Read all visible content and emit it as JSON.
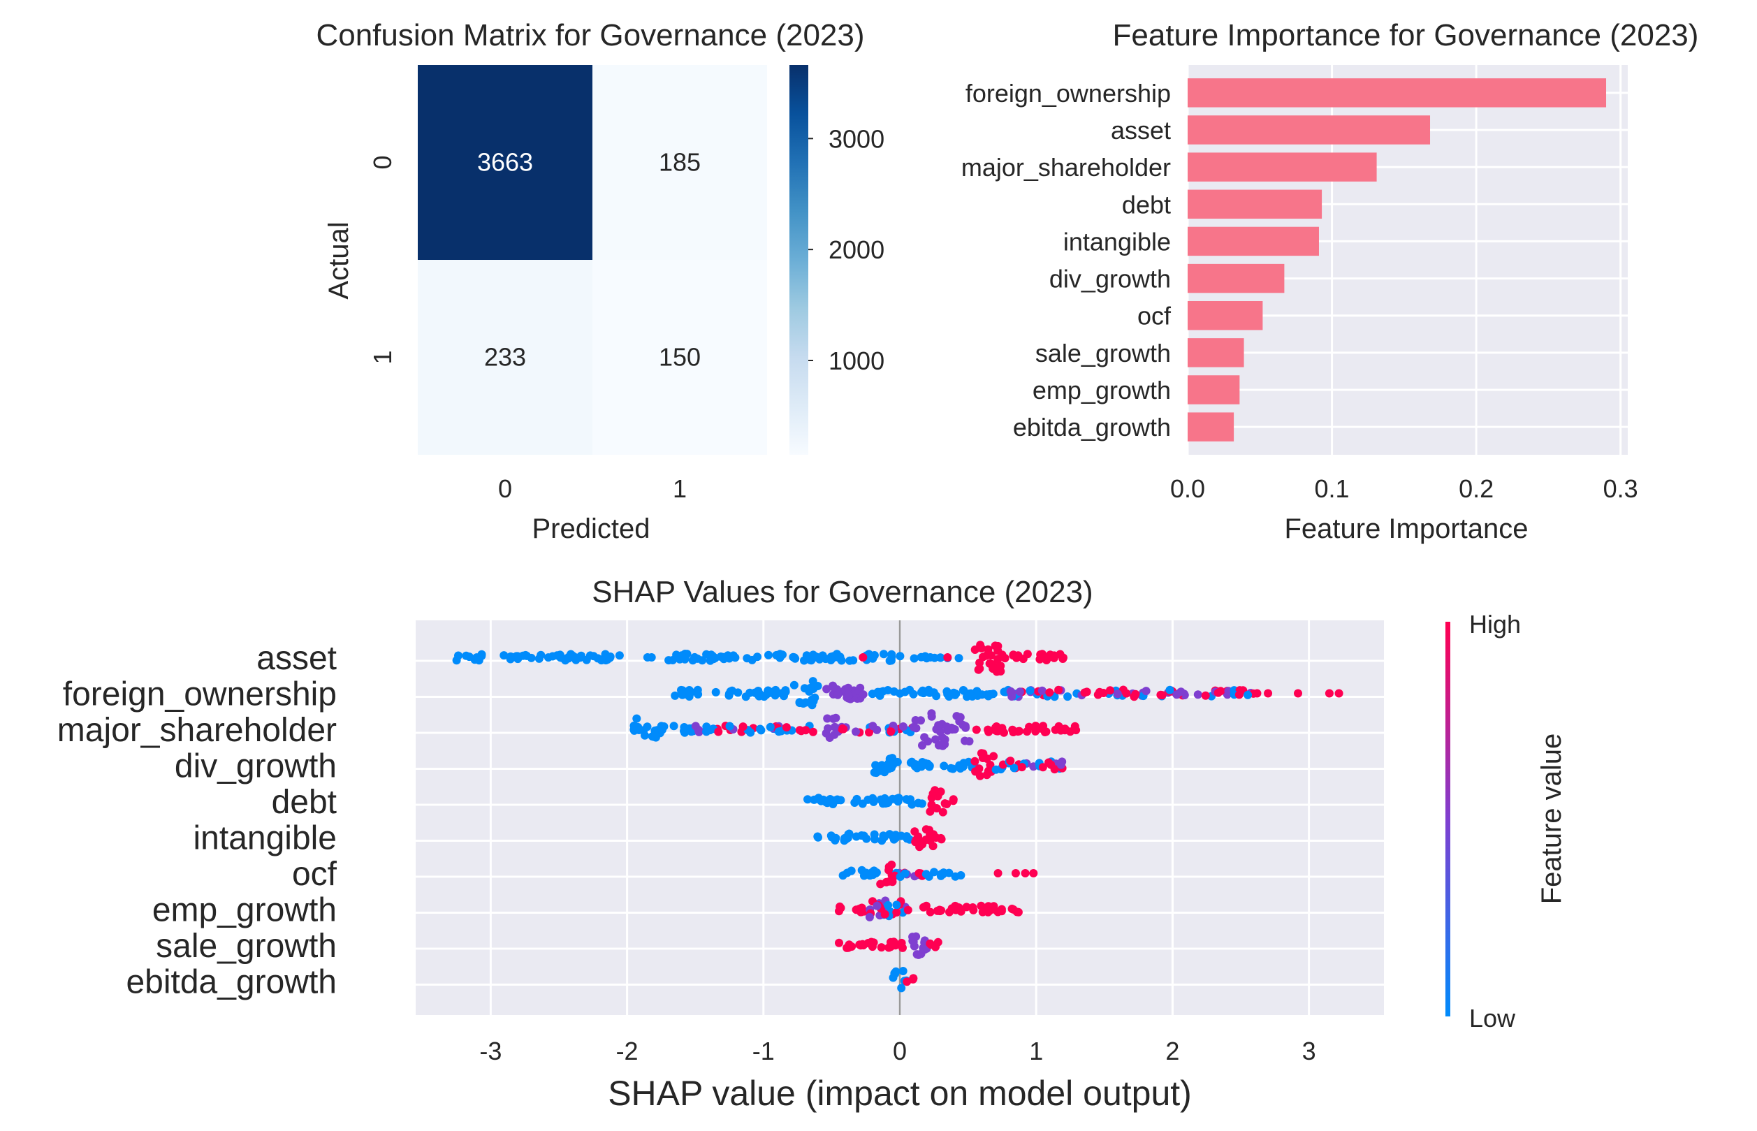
{
  "confusion_title": "Confusion Matrix for Governance (2023)",
  "importance_title": "Feature Importance for Governance (2023)",
  "shap_title": "SHAP Values for Governance (2023)",
  "colorbar_ticks": [
    "1000",
    "2000",
    "3000"
  ],
  "shap_colorbar": {
    "high": "High",
    "low": "Low",
    "label": "Feature value"
  },
  "colors": {
    "heat_low": "#f7fbff",
    "heat_high": "#08306b",
    "bar": "#f7758a",
    "panel_bg": "#eaeaf2",
    "grid": "#ffffff",
    "shap_low": "#008bfb",
    "shap_mid": "#7f3fd0",
    "shap_high": "#ff0052"
  },
  "chart_data": [
    {
      "type": "heatmap",
      "title": "Confusion Matrix for Governance (2023)",
      "xlabel": "Predicted",
      "ylabel": "Actual",
      "x_categories": [
        "0",
        "1"
      ],
      "y_categories": [
        "0",
        "1"
      ],
      "values": [
        [
          3663,
          185
        ],
        [
          233,
          150
        ]
      ],
      "colorbar": {
        "min": 150,
        "max": 3663,
        "ticks": [
          1000,
          2000,
          3000
        ]
      }
    },
    {
      "type": "bar",
      "orientation": "horizontal",
      "title": "Feature Importance for Governance (2023)",
      "xlabel": "Feature Importance",
      "ylabel": "",
      "categories": [
        "foreign_ownership",
        "asset",
        "major_shareholder",
        "debt",
        "intangible",
        "div_growth",
        "ocf",
        "sale_growth",
        "emp_growth",
        "ebitda_growth"
      ],
      "values": [
        0.29,
        0.168,
        0.131,
        0.093,
        0.091,
        0.067,
        0.052,
        0.039,
        0.036,
        0.032
      ],
      "xlim": [
        0,
        0.305
      ],
      "xticks": [
        "0.0",
        "0.1",
        "0.2",
        "0.3"
      ],
      "grid": true
    },
    {
      "type": "scatter",
      "subtype": "shap_beeswarm",
      "title": "SHAP Values for Governance (2023)",
      "xlabel": "SHAP value (impact on model output)",
      "ylabel": "",
      "xlim": [
        -3.55,
        3.55
      ],
      "xticks": [
        "-3",
        "-2",
        "-1",
        "0",
        "1",
        "2",
        "3"
      ],
      "colorbar": {
        "high": "High",
        "low": "Low",
        "label": "Feature value"
      },
      "features": [
        {
          "name": "asset",
          "segments": [
            {
              "from": -3.25,
              "to": -2.05,
              "color": "low",
              "density": 1.0
            },
            {
              "from": -1.7,
              "to": -0.05,
              "color": "low",
              "density": 1.0
            },
            {
              "from": 0.0,
              "to": 0.45,
              "color": "low",
              "density": 0.6
            },
            {
              "from": 0.5,
              "to": 0.75,
              "color": "high",
              "density": 3.0
            },
            {
              "from": 0.75,
              "to": 1.22,
              "color": "high",
              "density": 1.0
            }
          ],
          "points": [
            {
              "x": -1.85,
              "c": "low"
            },
            {
              "x": -1.82,
              "c": "low"
            },
            {
              "x": -0.27,
              "c": "high"
            },
            {
              "x": 0.35,
              "c": "high"
            }
          ]
        },
        {
          "name": "foreign_ownership",
          "segments": [
            {
              "from": -1.65,
              "to": -0.8,
              "color": "low",
              "density": 1.0
            },
            {
              "from": -0.78,
              "to": -0.6,
              "color": "low",
              "density": 2.6
            },
            {
              "from": -0.55,
              "to": -0.25,
              "color": "mid",
              "density": 1.8
            },
            {
              "from": -0.25,
              "to": 0.8,
              "color": "low",
              "density": 1.0
            },
            {
              "from": 0.8,
              "to": 2.6,
              "color": "mixed",
              "density": 1.0
            }
          ],
          "points": [
            {
              "x": 2.62,
              "c": "high"
            },
            {
              "x": 2.7,
              "c": "high"
            },
            {
              "x": 2.92,
              "c": "high"
            },
            {
              "x": 3.15,
              "c": "high"
            },
            {
              "x": 3.22,
              "c": "high"
            }
          ]
        },
        {
          "name": "major_shareholder",
          "segments": [
            {
              "from": -1.95,
              "to": -1.75,
              "color": "low",
              "density": 2.4
            },
            {
              "from": -1.75,
              "to": -1.5,
              "color": "low",
              "density": 1.0
            },
            {
              "from": -1.5,
              "to": -1.45,
              "color": "mid",
              "density": 2.4
            },
            {
              "from": -1.45,
              "to": -0.6,
              "color": "mixed",
              "density": 1.0
            },
            {
              "from": -0.55,
              "to": -0.45,
              "color": "mid",
              "density": 2.4
            },
            {
              "from": -0.45,
              "to": 0.1,
              "color": "mixed",
              "density": 1.0
            },
            {
              "from": 0.1,
              "to": 0.52,
              "color": "mid",
              "density": 3.4
            },
            {
              "from": 0.55,
              "to": 1.3,
              "color": "high",
              "density": 1.0
            }
          ],
          "points": []
        },
        {
          "name": "div_growth",
          "segments": [
            {
              "from": -0.2,
              "to": -0.05,
              "color": "low",
              "density": 2.0
            },
            {
              "from": -0.05,
              "to": 0.55,
              "color": "low",
              "density": 1.0
            },
            {
              "from": 0.55,
              "to": 0.7,
              "color": "high",
              "density": 2.6
            },
            {
              "from": 0.7,
              "to": 1.2,
              "color": "mixed",
              "density": 1.2
            }
          ],
          "points": []
        },
        {
          "name": "debt",
          "segments": [
            {
              "from": -0.7,
              "to": 0.2,
              "color": "low",
              "density": 1.0
            },
            {
              "from": 0.2,
              "to": 0.33,
              "color": "high",
              "density": 2.4
            },
            {
              "from": 0.33,
              "to": 0.42,
              "color": "high",
              "density": 1.0
            }
          ],
          "points": []
        },
        {
          "name": "intangible",
          "segments": [
            {
              "from": -0.63,
              "to": 0.08,
              "color": "low",
              "density": 1.0
            },
            {
              "from": 0.08,
              "to": 0.25,
              "color": "high",
              "density": 2.4
            },
            {
              "from": 0.25,
              "to": 0.32,
              "color": "high",
              "density": 1.0
            }
          ],
          "points": []
        },
        {
          "name": "ocf",
          "segments": [
            {
              "from": -0.45,
              "to": -0.15,
              "color": "low",
              "density": 1.0
            },
            {
              "from": -0.15,
              "to": -0.05,
              "color": "high",
              "density": 2.4
            },
            {
              "from": -0.05,
              "to": 0.3,
              "color": "mixed",
              "density": 1.0
            },
            {
              "from": 0.3,
              "to": 0.45,
              "color": "low",
              "density": 1.0
            }
          ],
          "points": [
            {
              "x": 0.72,
              "c": "high"
            },
            {
              "x": 0.85,
              "c": "high"
            },
            {
              "x": 0.92,
              "c": "high"
            },
            {
              "x": 0.98,
              "c": "high"
            }
          ]
        },
        {
          "name": "emp_growth",
          "segments": [
            {
              "from": -0.45,
              "to": -0.25,
              "color": "high",
              "density": 1.0
            },
            {
              "from": -0.25,
              "to": 0.05,
              "color": "mixed",
              "density": 2.0
            },
            {
              "from": 0.05,
              "to": 0.88,
              "color": "high",
              "density": 1.0
            }
          ],
          "points": []
        },
        {
          "name": "sale_growth",
          "segments": [
            {
              "from": -0.45,
              "to": 0.05,
              "color": "high",
              "density": 1.0
            },
            {
              "from": 0.05,
              "to": 0.2,
              "color": "mid",
              "density": 2.2
            },
            {
              "from": 0.2,
              "to": 0.3,
              "color": "high",
              "density": 1.0
            }
          ],
          "points": []
        },
        {
          "name": "ebitda_growth",
          "segments": [
            {
              "from": -0.05,
              "to": 0.05,
              "color": "low",
              "density": 2.4
            },
            {
              "from": 0.05,
              "to": 0.15,
              "color": "high",
              "density": 1.0
            }
          ],
          "points": []
        }
      ]
    }
  ]
}
